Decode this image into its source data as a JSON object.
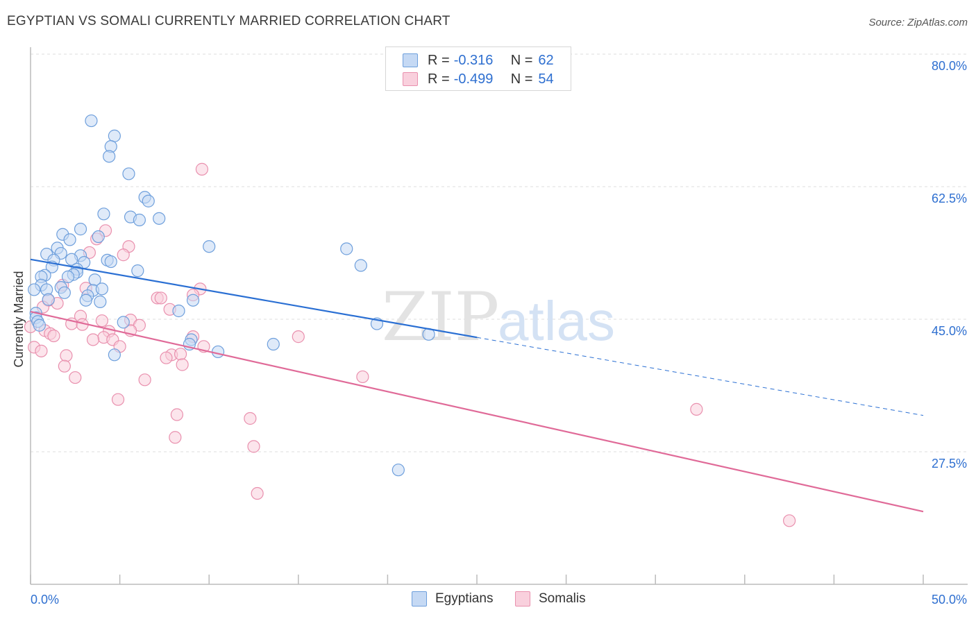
{
  "title": "EGYPTIAN VS SOMALI CURRENTLY MARRIED CORRELATION CHART",
  "source": "Source: ZipAtlas.com",
  "watermark": {
    "zip": "ZIP",
    "atlas": "atlas"
  },
  "legend": {
    "rows": [
      {
        "r_label": "R = ",
        "r_value": "-0.316",
        "n_label": "N = ",
        "n_value": "62"
      },
      {
        "r_label": "R = ",
        "r_value": "-0.499",
        "n_label": "N = ",
        "n_value": "54"
      }
    ]
  },
  "colors": {
    "egyptians_fill": "#c5d9f4",
    "egyptians_stroke": "#6e9fdc",
    "egyptians_line": "#2a6fd3",
    "somalis_fill": "#f9d0dd",
    "somalis_stroke": "#e990ae",
    "somalis_line": "#e06a98",
    "axis_label": "#2e6fd0",
    "grid": "#dddddd"
  },
  "chart_data": {
    "type": "scatter",
    "title": "EGYPTIAN VS SOMALI CURRENTLY MARRIED CORRELATION CHART",
    "xlabel": "",
    "ylabel": "Currently Married",
    "xlim": [
      0,
      50
    ],
    "ylim": [
      10,
      80
    ],
    "x_tick_labels": [
      "0.0%",
      "50.0%"
    ],
    "y_ticks": [
      27.5,
      45.0,
      62.5,
      80.0
    ],
    "y_tick_labels": [
      "27.5%",
      "45.0%",
      "62.5%",
      "80.0%"
    ],
    "series": [
      {
        "name": "Egyptians",
        "trend": {
          "x0": 0,
          "y0": 52.9,
          "x1": 25,
          "y1": 42.6,
          "dashed_to_x": 50,
          "dashed_to_y": 32.3
        },
        "points": [
          [
            3.4,
            71.2
          ],
          [
            4.7,
            69.2
          ],
          [
            4.5,
            67.8
          ],
          [
            4.4,
            66.5
          ],
          [
            5.5,
            64.2
          ],
          [
            6.4,
            61.1
          ],
          [
            6.6,
            60.6
          ],
          [
            4.1,
            58.9
          ],
          [
            5.6,
            58.5
          ],
          [
            6.1,
            58.1
          ],
          [
            7.2,
            58.3
          ],
          [
            2.8,
            56.9
          ],
          [
            1.8,
            56.2
          ],
          [
            3.8,
            55.9
          ],
          [
            2.2,
            55.5
          ],
          [
            1.5,
            54.4
          ],
          [
            0.9,
            53.6
          ],
          [
            1.7,
            53.7
          ],
          [
            1.3,
            52.8
          ],
          [
            2.8,
            53.4
          ],
          [
            4.3,
            52.8
          ],
          [
            4.5,
            52.6
          ],
          [
            2.3,
            52.9
          ],
          [
            3.0,
            52.5
          ],
          [
            1.2,
            51.9
          ],
          [
            2.6,
            51.6
          ],
          [
            2.6,
            51.2
          ],
          [
            6.0,
            51.4
          ],
          [
            2.4,
            50.9
          ],
          [
            2.1,
            50.6
          ],
          [
            0.8,
            50.8
          ],
          [
            0.6,
            50.6
          ],
          [
            3.6,
            50.2
          ],
          [
            0.6,
            49.5
          ],
          [
            0.2,
            48.9
          ],
          [
            0.9,
            48.9
          ],
          [
            1.7,
            49.2
          ],
          [
            3.5,
            48.8
          ],
          [
            4.0,
            49.0
          ],
          [
            1.9,
            48.5
          ],
          [
            3.2,
            48.1
          ],
          [
            1.0,
            47.6
          ],
          [
            3.1,
            47.5
          ],
          [
            3.9,
            47.3
          ],
          [
            8.3,
            46.1
          ],
          [
            0.3,
            45.8
          ],
          [
            0.3,
            45.2
          ],
          [
            0.4,
            44.7
          ],
          [
            0.5,
            44.2
          ],
          [
            5.2,
            44.6
          ],
          [
            9.0,
            42.3
          ],
          [
            8.9,
            41.7
          ],
          [
            10.5,
            40.7
          ],
          [
            13.6,
            41.7
          ],
          [
            4.7,
            40.3
          ],
          [
            10.0,
            54.6
          ],
          [
            17.7,
            54.3
          ],
          [
            18.5,
            52.1
          ],
          [
            19.4,
            44.4
          ],
          [
            22.3,
            43.0
          ],
          [
            20.6,
            25.1
          ],
          [
            9.1,
            47.5
          ]
        ]
      },
      {
        "name": "Somalis",
        "trend": {
          "x0": 0,
          "y0": 46.0,
          "x1": 50,
          "y1": 19.6
        },
        "points": [
          [
            9.6,
            64.8
          ],
          [
            4.2,
            56.7
          ],
          [
            3.7,
            55.6
          ],
          [
            5.5,
            54.6
          ],
          [
            3.3,
            53.8
          ],
          [
            5.2,
            53.5
          ],
          [
            1.8,
            49.5
          ],
          [
            3.1,
            49.1
          ],
          [
            9.5,
            49.0
          ],
          [
            7.1,
            47.8
          ],
          [
            7.3,
            47.8
          ],
          [
            9.1,
            48.2
          ],
          [
            1.0,
            47.5
          ],
          [
            1.5,
            47.1
          ],
          [
            7.8,
            46.3
          ],
          [
            0.7,
            46.6
          ],
          [
            2.8,
            45.4
          ],
          [
            4.0,
            44.8
          ],
          [
            5.6,
            44.9
          ],
          [
            2.3,
            44.4
          ],
          [
            2.9,
            44.3
          ],
          [
            6.1,
            44.2
          ],
          [
            0.8,
            43.5
          ],
          [
            4.4,
            43.4
          ],
          [
            5.6,
            43.5
          ],
          [
            1.1,
            43.1
          ],
          [
            1.3,
            42.8
          ],
          [
            4.1,
            42.6
          ],
          [
            9.1,
            42.7
          ],
          [
            15.0,
            42.7
          ],
          [
            3.5,
            42.3
          ],
          [
            4.6,
            42.3
          ],
          [
            0.2,
            41.3
          ],
          [
            0.6,
            40.8
          ],
          [
            5.0,
            41.4
          ],
          [
            9.7,
            41.4
          ],
          [
            2.0,
            40.2
          ],
          [
            7.9,
            40.3
          ],
          [
            7.6,
            39.9
          ],
          [
            8.4,
            40.4
          ],
          [
            1.9,
            38.8
          ],
          [
            8.5,
            39.0
          ],
          [
            2.5,
            37.3
          ],
          [
            6.4,
            37.0
          ],
          [
            18.6,
            37.4
          ],
          [
            4.9,
            34.4
          ],
          [
            8.2,
            32.4
          ],
          [
            12.3,
            31.9
          ],
          [
            37.3,
            33.1
          ],
          [
            8.1,
            29.4
          ],
          [
            12.5,
            28.2
          ],
          [
            12.7,
            22.0
          ],
          [
            42.5,
            18.4
          ],
          [
            0.0,
            44.0
          ]
        ]
      }
    ]
  }
}
